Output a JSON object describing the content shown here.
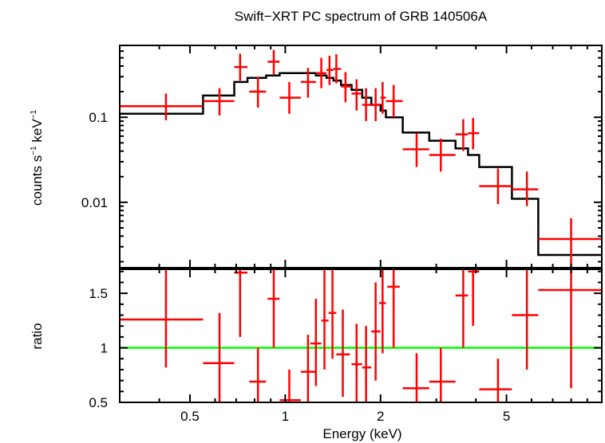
{
  "chart_data": {
    "type": "scatter",
    "title": "Swift−XRT PC spectrum of GRB 140506A",
    "xlabel": "Energy (keV)",
    "x_scale": "log",
    "xlim": [
      0.3,
      10
    ],
    "x_ticks": [
      {
        "value": 0.5,
        "label": "0.5"
      },
      {
        "value": 1,
        "label": "1"
      },
      {
        "value": 2,
        "label": "2"
      },
      {
        "value": 5,
        "label": "5"
      }
    ],
    "panels": [
      {
        "name": "spectrum",
        "ylabel_parts": [
          "counts s",
          "−1",
          " keV",
          "−1"
        ],
        "y_scale": "log",
        "ylim": [
          0.0017,
          0.7
        ],
        "y_ticks": [
          {
            "value": 0.1,
            "label": "0.1"
          },
          {
            "value": 0.01,
            "label": "0.01"
          }
        ],
        "data_color": "#ff0000",
        "model_color": "#000000",
        "data": [
          {
            "x": 0.42,
            "xlo": 0.3,
            "xhi": 0.55,
            "y": 0.135,
            "ylo": 0.092,
            "yhi": 0.19
          },
          {
            "x": 0.62,
            "xlo": 0.55,
            "xhi": 0.69,
            "y": 0.155,
            "ylo": 0.105,
            "yhi": 0.22
          },
          {
            "x": 0.72,
            "xlo": 0.69,
            "xhi": 0.76,
            "y": 0.39,
            "ylo": 0.27,
            "yhi": 0.56
          },
          {
            "x": 0.82,
            "xlo": 0.77,
            "xhi": 0.87,
            "y": 0.2,
            "ylo": 0.13,
            "yhi": 0.3
          },
          {
            "x": 0.92,
            "xlo": 0.88,
            "xhi": 0.96,
            "y": 0.45,
            "ylo": 0.32,
            "yhi": 0.62
          },
          {
            "x": 1.03,
            "xlo": 0.96,
            "xhi": 1.12,
            "y": 0.17,
            "ylo": 0.11,
            "yhi": 0.26
          },
          {
            "x": 1.18,
            "xlo": 1.12,
            "xhi": 1.25,
            "y": 0.26,
            "ylo": 0.17,
            "yhi": 0.38
          },
          {
            "x": 1.3,
            "xlo": 1.25,
            "xhi": 1.35,
            "y": 0.33,
            "ylo": 0.22,
            "yhi": 0.5
          },
          {
            "x": 1.38,
            "xlo": 1.35,
            "xhi": 1.42,
            "y": 0.36,
            "ylo": 0.24,
            "yhi": 0.53
          },
          {
            "x": 1.45,
            "xlo": 1.42,
            "xhi": 1.5,
            "y": 0.37,
            "ylo": 0.25,
            "yhi": 0.55
          },
          {
            "x": 1.55,
            "xlo": 1.5,
            "xhi": 1.62,
            "y": 0.23,
            "ylo": 0.15,
            "yhi": 0.34
          },
          {
            "x": 1.68,
            "xlo": 1.62,
            "xhi": 1.75,
            "y": 0.19,
            "ylo": 0.12,
            "yhi": 0.28
          },
          {
            "x": 1.8,
            "xlo": 1.75,
            "xhi": 1.87,
            "y": 0.14,
            "ylo": 0.09,
            "yhi": 0.22
          },
          {
            "x": 1.93,
            "xlo": 1.87,
            "xhi": 2.0,
            "y": 0.14,
            "ylo": 0.09,
            "yhi": 0.22
          },
          {
            "x": 2.03,
            "xlo": 2.0,
            "xhi": 2.08,
            "y": 0.17,
            "ylo": 0.11,
            "yhi": 0.26
          },
          {
            "x": 2.2,
            "xlo": 2.08,
            "xhi": 2.35,
            "y": 0.155,
            "ylo": 0.1,
            "yhi": 0.24
          },
          {
            "x": 2.6,
            "xlo": 2.35,
            "xhi": 2.85,
            "y": 0.042,
            "ylo": 0.026,
            "yhi": 0.065
          },
          {
            "x": 3.1,
            "xlo": 2.85,
            "xhi": 3.45,
            "y": 0.036,
            "ylo": 0.023,
            "yhi": 0.056
          },
          {
            "x": 3.65,
            "xlo": 3.45,
            "xhi": 3.78,
            "y": 0.063,
            "ylo": 0.04,
            "yhi": 0.095
          },
          {
            "x": 3.92,
            "xlo": 3.78,
            "xhi": 4.1,
            "y": 0.065,
            "ylo": 0.042,
            "yhi": 0.098
          },
          {
            "x": 4.7,
            "xlo": 4.1,
            "xhi": 5.2,
            "y": 0.0155,
            "ylo": 0.0095,
            "yhi": 0.025
          },
          {
            "x": 5.8,
            "xlo": 5.2,
            "xhi": 6.3,
            "y": 0.0142,
            "ylo": 0.009,
            "yhi": 0.023
          },
          {
            "x": 8.0,
            "xlo": 6.3,
            "xhi": 10.0,
            "y": 0.0037,
            "ylo": 0.0017,
            "yhi": 0.0065
          }
        ],
        "model_steps": [
          {
            "xlo": 0.3,
            "xhi": 0.55,
            "y": 0.11
          },
          {
            "xlo": 0.55,
            "xhi": 0.69,
            "y": 0.18
          },
          {
            "xlo": 0.69,
            "xhi": 0.76,
            "y": 0.26
          },
          {
            "xlo": 0.76,
            "xhi": 0.87,
            "y": 0.29
          },
          {
            "xlo": 0.87,
            "xhi": 0.96,
            "y": 0.31
          },
          {
            "xlo": 0.96,
            "xhi": 1.12,
            "y": 0.33
          },
          {
            "xlo": 1.12,
            "xhi": 1.25,
            "y": 0.33
          },
          {
            "xlo": 1.25,
            "xhi": 1.35,
            "y": 0.31
          },
          {
            "xlo": 1.35,
            "xhi": 1.42,
            "y": 0.29
          },
          {
            "xlo": 1.42,
            "xhi": 1.5,
            "y": 0.27
          },
          {
            "xlo": 1.5,
            "xhi": 1.62,
            "y": 0.24
          },
          {
            "xlo": 1.62,
            "xhi": 1.75,
            "y": 0.21
          },
          {
            "xlo": 1.75,
            "xhi": 1.87,
            "y": 0.17
          },
          {
            "xlo": 1.87,
            "xhi": 2.0,
            "y": 0.14
          },
          {
            "xlo": 2.0,
            "xhi": 2.08,
            "y": 0.12
          },
          {
            "xlo": 2.08,
            "xhi": 2.35,
            "y": 0.1
          },
          {
            "xlo": 2.35,
            "xhi": 2.85,
            "y": 0.066
          },
          {
            "xlo": 2.85,
            "xhi": 3.45,
            "y": 0.053
          },
          {
            "xlo": 3.45,
            "xhi": 3.78,
            "y": 0.043
          },
          {
            "xlo": 3.78,
            "xhi": 4.1,
            "y": 0.036
          },
          {
            "xlo": 4.1,
            "xhi": 5.2,
            "y": 0.026
          },
          {
            "xlo": 5.2,
            "xhi": 6.3,
            "y": 0.011
          },
          {
            "xlo": 6.3,
            "xhi": 10.0,
            "y": 0.0024
          }
        ]
      },
      {
        "name": "ratio",
        "ylabel": "ratio",
        "y_scale": "linear",
        "ylim": [
          0.5,
          1.72
        ],
        "y_ticks": [
          {
            "value": 0.5,
            "label": "0.5"
          },
          {
            "value": 1,
            "label": "1"
          },
          {
            "value": 1.5,
            "label": "1.5"
          }
        ],
        "data_color": "#ff0000",
        "reference_line": {
          "y": 1,
          "color": "#00ff00"
        },
        "data": [
          {
            "x": 0.42,
            "xlo": 0.3,
            "xhi": 0.55,
            "y": 1.26,
            "ylo": 0.82,
            "yhi": 1.72
          },
          {
            "x": 0.62,
            "xlo": 0.55,
            "xhi": 0.69,
            "y": 0.86,
            "ylo": 0.5,
            "yhi": 1.32
          },
          {
            "x": 0.72,
            "xlo": 0.69,
            "xhi": 0.76,
            "y": 1.69,
            "ylo": 1.1,
            "yhi": 1.72
          },
          {
            "x": 0.82,
            "xlo": 0.77,
            "xhi": 0.87,
            "y": 0.69,
            "ylo": 0.5,
            "yhi": 1.0
          },
          {
            "x": 0.92,
            "xlo": 0.88,
            "xhi": 0.96,
            "y": 1.45,
            "ylo": 1.0,
            "yhi": 1.72
          },
          {
            "x": 1.03,
            "xlo": 0.96,
            "xhi": 1.12,
            "y": 0.52,
            "ylo": 0.5,
            "yhi": 0.8
          },
          {
            "x": 1.18,
            "xlo": 1.12,
            "xhi": 1.25,
            "y": 0.78,
            "ylo": 0.5,
            "yhi": 1.12
          },
          {
            "x": 1.25,
            "xlo": 1.2,
            "xhi": 1.3,
            "y": 1.04,
            "ylo": 0.65,
            "yhi": 1.45
          },
          {
            "x": 1.33,
            "xlo": 1.3,
            "xhi": 1.37,
            "y": 1.25,
            "ylo": 0.8,
            "yhi": 1.72
          },
          {
            "x": 1.41,
            "xlo": 1.37,
            "xhi": 1.45,
            "y": 1.32,
            "ylo": 0.9,
            "yhi": 1.72
          },
          {
            "x": 1.52,
            "xlo": 1.45,
            "xhi": 1.6,
            "y": 0.94,
            "ylo": 0.55,
            "yhi": 1.35
          },
          {
            "x": 1.68,
            "xlo": 1.62,
            "xhi": 1.75,
            "y": 0.85,
            "ylo": 0.5,
            "yhi": 1.22
          },
          {
            "x": 1.8,
            "xlo": 1.75,
            "xhi": 1.87,
            "y": 0.82,
            "ylo": 0.5,
            "yhi": 1.2
          },
          {
            "x": 1.93,
            "xlo": 1.87,
            "xhi": 2.0,
            "y": 1.15,
            "ylo": 0.7,
            "yhi": 1.6
          },
          {
            "x": 2.03,
            "xlo": 1.98,
            "xhi": 2.08,
            "y": 1.41,
            "ylo": 0.95,
            "yhi": 1.72
          },
          {
            "x": 2.2,
            "xlo": 2.1,
            "xhi": 2.3,
            "y": 1.56,
            "ylo": 1.0,
            "yhi": 1.72
          },
          {
            "x": 2.6,
            "xlo": 2.35,
            "xhi": 2.85,
            "y": 0.63,
            "ylo": 0.5,
            "yhi": 0.95
          },
          {
            "x": 3.1,
            "xlo": 2.85,
            "xhi": 3.45,
            "y": 0.69,
            "ylo": 0.5,
            "yhi": 1.0
          },
          {
            "x": 3.65,
            "xlo": 3.45,
            "xhi": 3.78,
            "y": 1.48,
            "ylo": 1.0,
            "yhi": 1.72
          },
          {
            "x": 3.92,
            "xlo": 3.78,
            "xhi": 4.1,
            "y": 1.7,
            "ylo": 1.2,
            "yhi": 1.72
          },
          {
            "x": 4.7,
            "xlo": 4.1,
            "xhi": 5.2,
            "y": 0.62,
            "ylo": 0.5,
            "yhi": 0.9
          },
          {
            "x": 5.8,
            "xlo": 5.2,
            "xhi": 6.3,
            "y": 1.3,
            "ylo": 0.8,
            "yhi": 1.72
          },
          {
            "x": 8.0,
            "xlo": 6.3,
            "xhi": 10.0,
            "y": 1.53,
            "ylo": 0.63,
            "yhi": 1.72
          }
        ]
      }
    ]
  }
}
